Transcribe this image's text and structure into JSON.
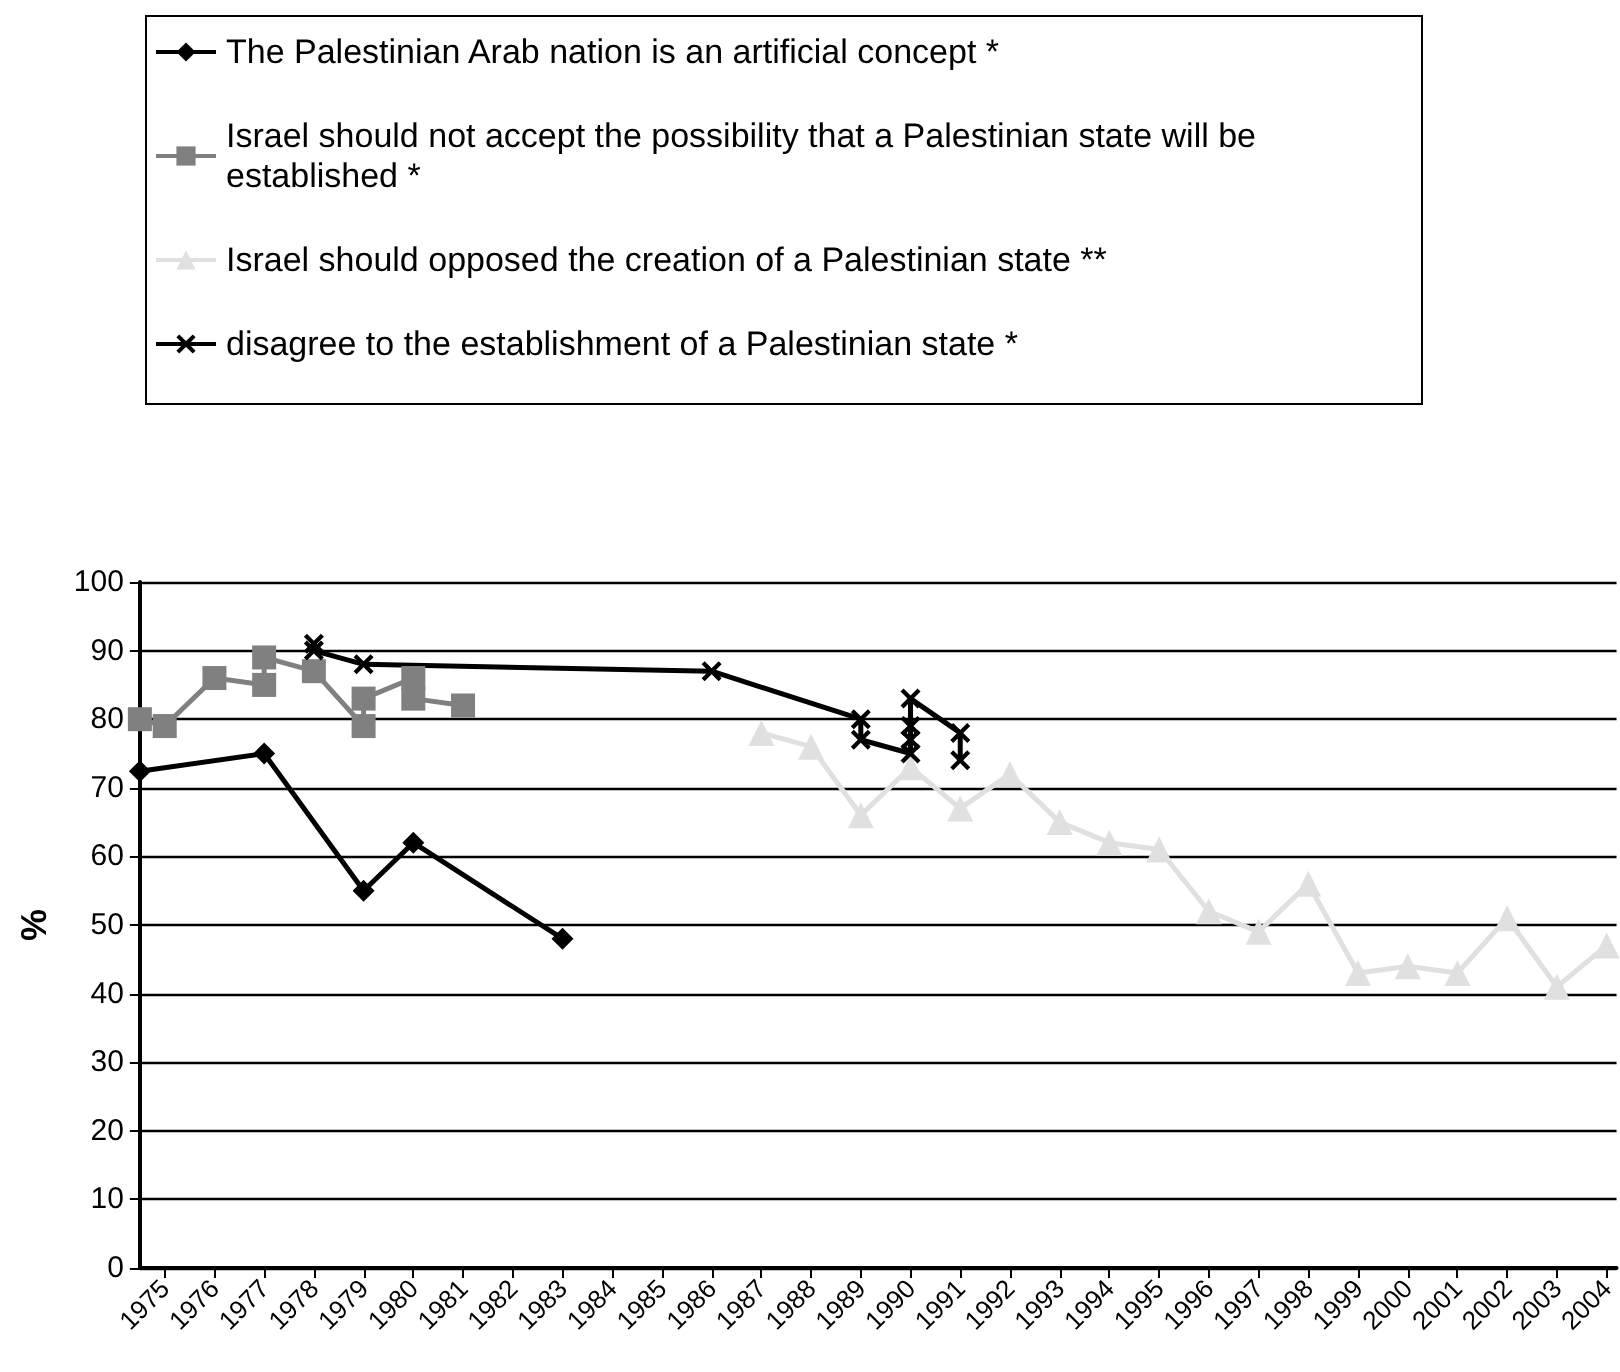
{
  "chart_data": {
    "type": "line",
    "ylabel": "%",
    "xlim": [
      1974.5,
      2004.2
    ],
    "xticks": [
      1975,
      1976,
      1977,
      1978,
      1979,
      1980,
      1981,
      1982,
      1983,
      1984,
      1985,
      1986,
      1987,
      1988,
      1989,
      1990,
      1991,
      1992,
      1993,
      1994,
      1995,
      1996,
      1997,
      1998,
      1999,
      2000,
      2001,
      2002,
      2003,
      2004
    ],
    "ylim": [
      0,
      100
    ],
    "yticks": [
      0,
      10,
      20,
      30,
      40,
      50,
      60,
      70,
      80,
      90,
      100
    ],
    "grid": "y",
    "legend": "top",
    "series": [
      {
        "name": "The Palestinian Arab nation is an artificial concept *",
        "color": "#000000",
        "marker": "diamond",
        "x": [
          1974.5,
          1977,
          1979,
          1980,
          1983
        ],
        "values": [
          72.4,
          75,
          55,
          62,
          48
        ]
      },
      {
        "name": "Israel should not accept the possibility that a Palestinian state will be established *",
        "color": "#808080",
        "marker": "square",
        "x": [
          1974.5,
          1975,
          1976,
          1977,
          1977,
          1978,
          1979,
          1979,
          1980,
          1980,
          1981
        ],
        "values": [
          80,
          79,
          86,
          85,
          89,
          87,
          79,
          83,
          86,
          83,
          82
        ]
      },
      {
        "name": "Israel should opposed the creation of a Palestinian state **",
        "color": "#e0e0e0",
        "marker": "triangle",
        "x": [
          1987,
          1988,
          1989,
          1990,
          1991,
          1992,
          1993,
          1994,
          1995,
          1996,
          1997,
          1998,
          1999,
          2000,
          2001,
          2002,
          2003,
          2004
        ],
        "values": [
          78,
          76,
          66,
          73,
          67,
          72,
          65,
          62,
          61,
          52,
          49,
          56,
          43,
          44,
          43,
          51,
          41,
          47
        ]
      },
      {
        "name": "disagree to the establishment of a Palestinian state *",
        "color": "#000000",
        "marker": "cross",
        "x": [
          1978,
          1978,
          1979,
          1986,
          1989,
          1989,
          1990,
          1990,
          1990,
          1990,
          1991,
          1991
        ],
        "values": [
          91,
          90,
          88,
          87,
          80,
          77,
          75,
          77,
          79,
          83,
          78,
          74
        ]
      }
    ]
  }
}
